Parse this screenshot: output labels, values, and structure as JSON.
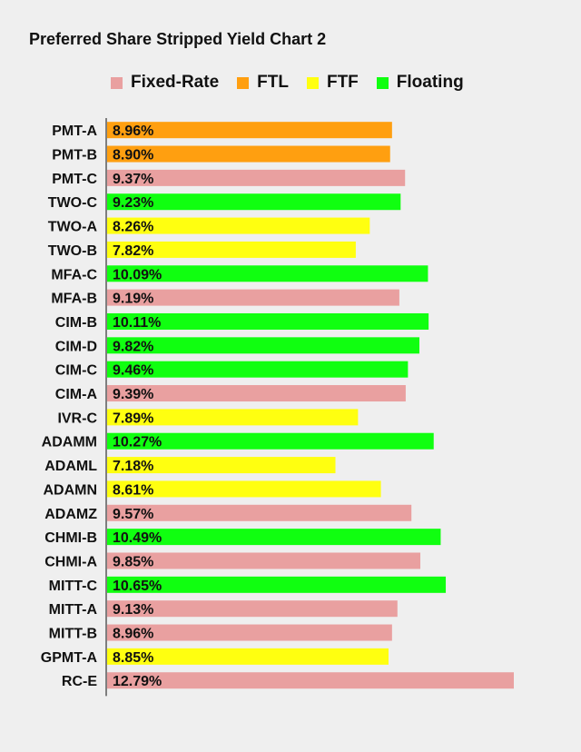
{
  "chart_data": {
    "type": "bar",
    "orientation": "horizontal",
    "title": "Preferred Share Stripped Yield Chart 2",
    "legend": [
      {
        "name": "Fixed-Rate",
        "color": "#e9a0a0"
      },
      {
        "name": "FTL",
        "color": "#ff9f10"
      },
      {
        "name": "FTF",
        "color": "#ffff10"
      },
      {
        "name": "Floating",
        "color": "#10ff10"
      }
    ],
    "legend_placement": "top",
    "grid": false,
    "xlim": [
      0,
      12.79
    ],
    "categories": [
      "PMT-A",
      "PMT-B",
      "PMT-C",
      "TWO-C",
      "TWO-A",
      "TWO-B",
      "MFA-C",
      "MFA-B",
      "CIM-B",
      "CIM-D",
      "CIM-C",
      "CIM-A",
      "IVR-C",
      "ADAMM",
      "ADAML",
      "ADAMN",
      "ADAMZ",
      "CHMI-B",
      "CHMI-A",
      "MITT-C",
      "MITT-A",
      "MITT-B",
      "GPMT-A",
      "RC-E"
    ],
    "values": [
      8.96,
      8.9,
      9.37,
      9.23,
      8.26,
      7.82,
      10.09,
      9.19,
      10.11,
      9.82,
      9.46,
      9.39,
      7.89,
      10.27,
      7.18,
      8.61,
      9.57,
      10.49,
      9.85,
      10.65,
      9.13,
      8.96,
      8.85,
      12.79
    ],
    "labels": [
      "8.96%",
      "8.90%",
      "9.37%",
      "9.23%",
      "8.26%",
      "7.82%",
      "10.09%",
      "9.19%",
      "10.11%",
      "9.82%",
      "9.46%",
      "9.39%",
      "7.89%",
      "10.27%",
      "7.18%",
      "8.61%",
      "9.57%",
      "10.49%",
      "9.85%",
      "10.65%",
      "9.13%",
      "8.96%",
      "8.85%",
      "12.79%"
    ],
    "types": [
      "FTL",
      "FTL",
      "Fixed-Rate",
      "Floating",
      "FTF",
      "FTF",
      "Floating",
      "Fixed-Rate",
      "Floating",
      "Floating",
      "Floating",
      "Fixed-Rate",
      "FTF",
      "Floating",
      "FTF",
      "FTF",
      "Fixed-Rate",
      "Floating",
      "Fixed-Rate",
      "Floating",
      "Fixed-Rate",
      "Fixed-Rate",
      "FTF",
      "Fixed-Rate"
    ]
  }
}
